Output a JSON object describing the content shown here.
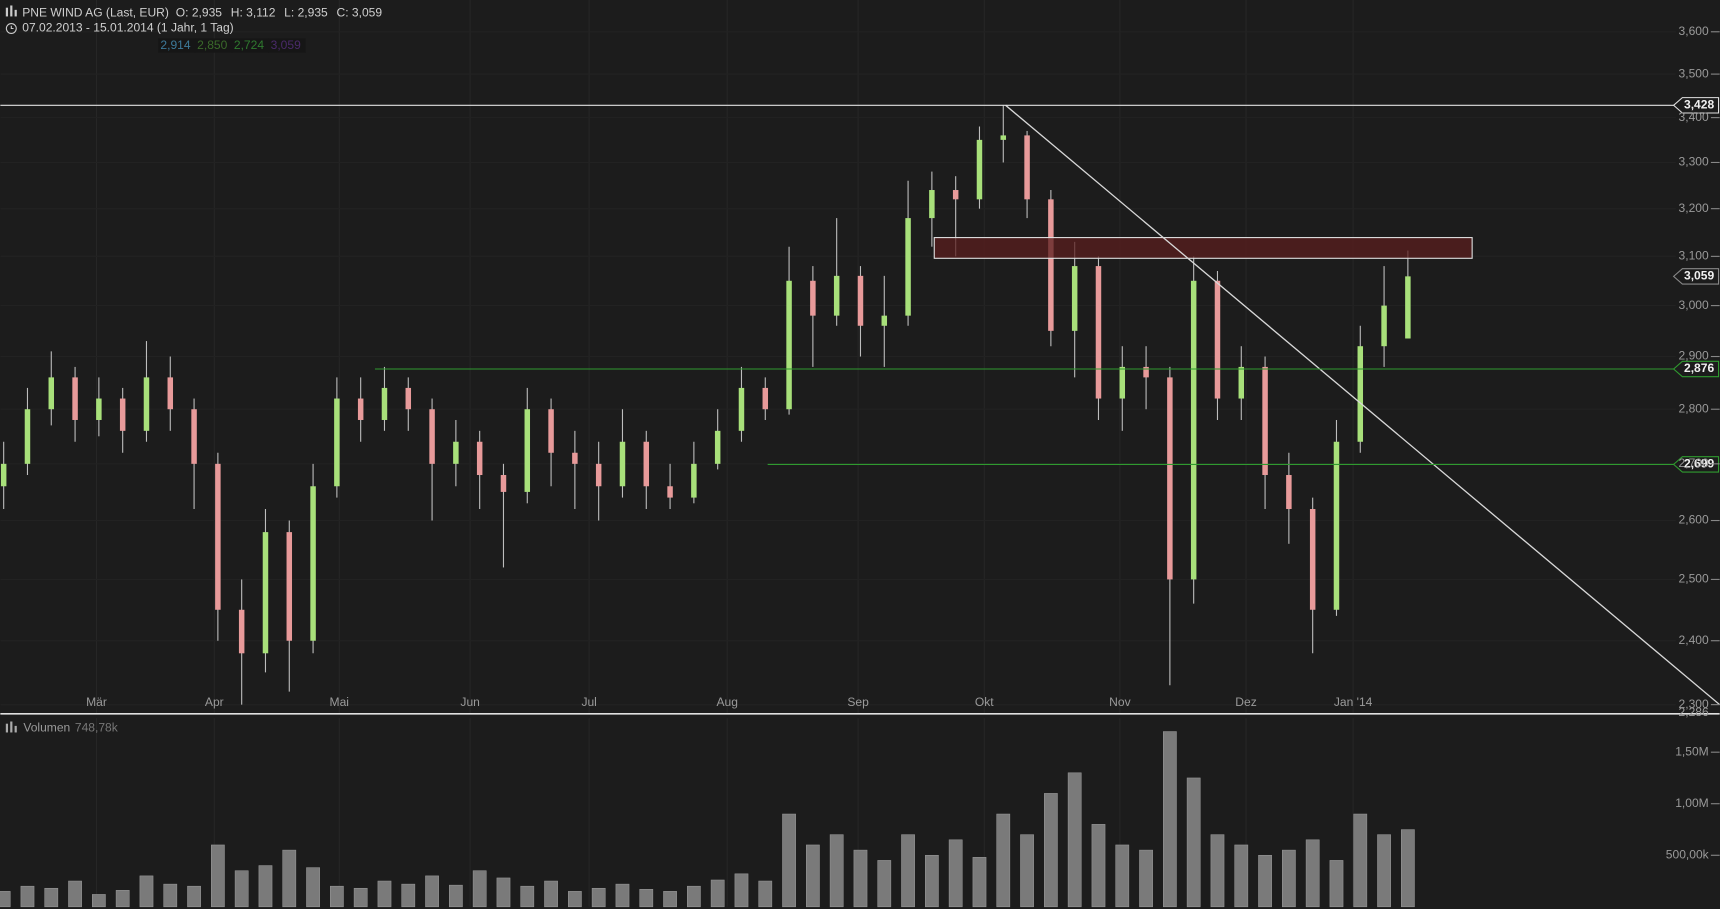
{
  "chart_data": {
    "type": "candlestick",
    "title": "PNE WIND AG (Last, EUR)",
    "quote": [
      "O: 2,935",
      "H: 3,112",
      "L: 2,935",
      "C: 3,059"
    ],
    "subtitle": "07.02.2013 - 15.01.2014 (1 Jahr, 1 Tag)",
    "indicator_values": [
      {
        "label": "2,914",
        "color": "#3d7a9a"
      },
      {
        "label": "2,850",
        "color": "#3a6a2a"
      },
      {
        "label": "2,724",
        "color": "#2f7a2f"
      },
      {
        "label": "3,059",
        "color": "#4a2a6a"
      }
    ],
    "log_scale": true,
    "up_color": "#a8e07a",
    "down_color": "#e89a9a",
    "categories": [
      null,
      null,
      null,
      null,
      null,
      null,
      null,
      null,
      null,
      null,
      null,
      null,
      null,
      null,
      null,
      null,
      null,
      null,
      null,
      null,
      null,
      null,
      null,
      null,
      null,
      null,
      null,
      null,
      null,
      null,
      null,
      null,
      null,
      null,
      null,
      null,
      null,
      null,
      null,
      null,
      null,
      null,
      null,
      null,
      null,
      null,
      null,
      null,
      null,
      null,
      null,
      null,
      null,
      null,
      null,
      null,
      null,
      null,
      null,
      null
    ],
    "open": [
      2.66,
      2.7,
      2.8,
      2.86,
      2.78,
      2.82,
      2.76,
      2.86,
      2.8,
      2.7,
      2.45,
      2.38,
      2.58,
      2.4,
      2.66,
      2.82,
      2.78,
      2.84,
      2.8,
      2.7,
      2.74,
      2.68,
      2.65,
      2.8,
      2.72,
      2.7,
      2.66,
      2.74,
      2.66,
      2.64,
      2.7,
      2.76,
      2.84,
      2.8,
      3.05,
      2.98,
      3.06,
      2.96,
      2.98,
      3.18,
      3.24,
      3.22,
      3.35,
      3.36,
      3.22,
      2.95,
      3.08,
      2.82,
      2.88,
      2.86,
      2.5,
      3.05,
      2.82,
      2.88,
      2.68,
      2.62,
      2.45,
      2.74,
      2.92,
      2.935
    ],
    "high": [
      2.74,
      2.84,
      2.91,
      2.88,
      2.86,
      2.84,
      2.93,
      2.9,
      2.82,
      2.72,
      2.5,
      2.62,
      2.6,
      2.7,
      2.86,
      2.86,
      2.88,
      2.86,
      2.82,
      2.78,
      2.76,
      2.7,
      2.84,
      2.82,
      2.76,
      2.74,
      2.8,
      2.76,
      2.7,
      2.74,
      2.8,
      2.88,
      2.86,
      3.12,
      3.08,
      3.18,
      3.08,
      3.06,
      3.26,
      3.28,
      3.27,
      3.38,
      3.428,
      3.37,
      3.24,
      3.13,
      3.1,
      2.92,
      2.92,
      2.88,
      3.1,
      3.07,
      2.92,
      2.9,
      2.72,
      2.64,
      2.78,
      2.96,
      3.08,
      3.112
    ],
    "low": [
      2.62,
      2.68,
      2.77,
      2.74,
      2.75,
      2.72,
      2.74,
      2.76,
      2.62,
      2.4,
      2.3,
      2.35,
      2.32,
      2.38,
      2.64,
      2.74,
      2.76,
      2.76,
      2.6,
      2.66,
      2.62,
      2.52,
      2.63,
      2.66,
      2.62,
      2.6,
      2.64,
      2.62,
      2.62,
      2.63,
      2.69,
      2.74,
      2.78,
      2.79,
      2.88,
      2.96,
      2.9,
      2.88,
      2.96,
      3.12,
      3.1,
      3.2,
      3.3,
      3.18,
      2.92,
      2.86,
      2.78,
      2.76,
      2.8,
      2.33,
      2.46,
      2.78,
      2.78,
      2.62,
      2.56,
      2.38,
      2.44,
      2.72,
      2.88,
      2.935
    ],
    "close": [
      2.7,
      2.8,
      2.86,
      2.78,
      2.82,
      2.76,
      2.86,
      2.8,
      2.7,
      2.45,
      2.38,
      2.58,
      2.4,
      2.66,
      2.82,
      2.78,
      2.84,
      2.8,
      2.7,
      2.74,
      2.68,
      2.65,
      2.8,
      2.72,
      2.7,
      2.66,
      2.74,
      2.66,
      2.64,
      2.7,
      2.76,
      2.84,
      2.8,
      3.05,
      2.98,
      3.06,
      2.96,
      2.98,
      3.18,
      3.24,
      3.22,
      3.35,
      3.36,
      3.22,
      2.95,
      3.08,
      2.82,
      2.88,
      2.86,
      2.5,
      3.05,
      2.82,
      2.88,
      2.68,
      2.62,
      2.45,
      2.74,
      2.92,
      3.0,
      3.059
    ],
    "xlim": [
      -0.14,
      72.1
    ],
    "xticks": [
      {
        "value": 3.9,
        "label": "Mär"
      },
      {
        "value": 8.85,
        "label": "Apr"
      },
      {
        "value": 14.1,
        "label": "Mai"
      },
      {
        "value": 19.6,
        "label": "Jun"
      },
      {
        "value": 24.6,
        "label": "Jul"
      },
      {
        "value": 30.4,
        "label": "Aug"
      },
      {
        "value": 35.9,
        "label": "Sep"
      },
      {
        "value": 41.2,
        "label": "Okt"
      },
      {
        "value": 46.9,
        "label": "Nov"
      },
      {
        "value": 52.2,
        "label": "Dez"
      },
      {
        "value": 56.7,
        "label": "Jan '14"
      }
    ],
    "ylim": [
      2.286,
      3.677
    ],
    "ylim_label": "2,286",
    "yticks": [
      {
        "value": 2.3,
        "label": "2,300"
      },
      {
        "value": 2.4,
        "label": "2,400"
      },
      {
        "value": 2.5,
        "label": "2,500"
      },
      {
        "value": 2.6,
        "label": "2,600"
      },
      {
        "value": 2.7,
        "label": "2,700"
      },
      {
        "value": 2.8,
        "label": "2,800"
      },
      {
        "value": 2.9,
        "label": "2,900"
      },
      {
        "value": 3,
        "label": "3,000"
      },
      {
        "value": 3.1,
        "label": "3,100"
      },
      {
        "value": 3.2,
        "label": "3,200"
      },
      {
        "value": 3.3,
        "label": "3,300"
      },
      {
        "value": 3.4,
        "label": "3,400"
      },
      {
        "value": 3.5,
        "label": "3,500"
      },
      {
        "value": 3.6,
        "label": "3,600"
      }
    ],
    "hlines": [
      {
        "value": 3.428,
        "label": "3,428",
        "x": [
          -0.14,
          72.1
        ],
        "color": "#e0e0e0"
      },
      {
        "value": 2.876,
        "label": "2,876",
        "x": [
          15.6,
          72.1
        ],
        "color": "#2f9a2f"
      },
      {
        "value": 2.699,
        "label": "2,699",
        "x": [
          32.1,
          72.1
        ],
        "color": "#2f9a2f"
      }
    ],
    "last_price": {
      "value": 3.059,
      "label": "3,059"
    },
    "trendline": {
      "x": [
        42.1,
        72.1
      ],
      "y": [
        3.428,
        2.3
      ],
      "color": "#d8d8d8"
    },
    "zone": {
      "x": [
        39.1,
        61.7
      ],
      "y": [
        3.096,
        3.139
      ],
      "color": "#5a1e1e"
    },
    "volume": {
      "label": "Volumen",
      "last_label": "748,78k",
      "color": "#7a7a7a",
      "values": [
        150000,
        200000,
        180000,
        250000,
        120000,
        160000,
        300000,
        220000,
        200000,
        600000,
        350000,
        400000,
        550000,
        380000,
        200000,
        180000,
        250000,
        220000,
        300000,
        210000,
        350000,
        280000,
        200000,
        250000,
        150000,
        180000,
        220000,
        170000,
        150000,
        200000,
        260000,
        320000,
        250000,
        900000,
        600000,
        700000,
        550000,
        450000,
        700000,
        500000,
        650000,
        480000,
        900000,
        700000,
        1100000,
        1300000,
        800000,
        600000,
        550000,
        1700000,
        1250000,
        700000,
        600000,
        500000,
        550000,
        650000,
        450000,
        900000,
        700000,
        748780
      ],
      "ylim": [
        0,
        1787000
      ],
      "yticks": [
        {
          "value": 500000,
          "label": "500,00k"
        },
        {
          "value": 1000000,
          "label": "1,00M"
        },
        {
          "value": 1500000,
          "label": "1,50M"
        }
      ]
    }
  }
}
